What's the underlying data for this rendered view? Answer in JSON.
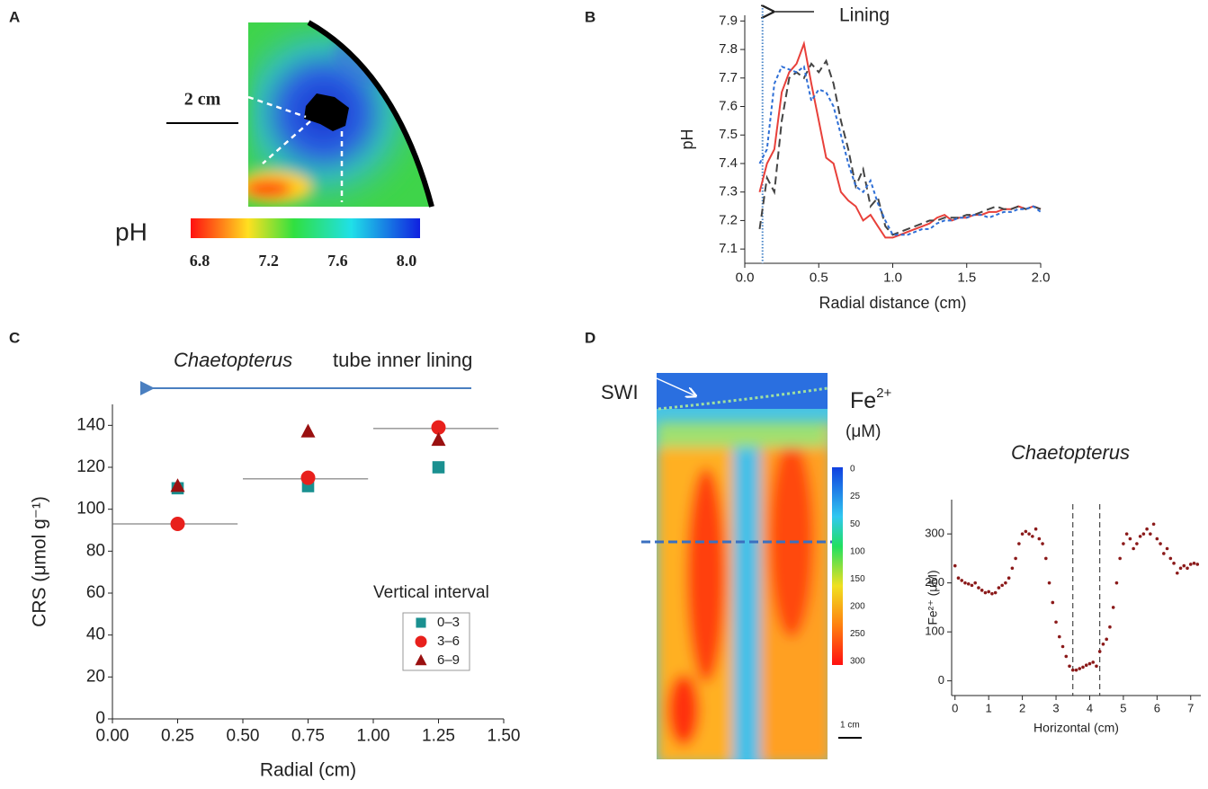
{
  "chart_data": [
    {
      "type": "image",
      "panel": "A",
      "scale_label": "2 cm",
      "colorbar_label": "pH",
      "colorbar_ticks": [
        6.8,
        7.2,
        7.6,
        {
          "value": 8,
          "label": "8.0"
        }
      ]
    },
    {
      "type": "line",
      "panel": "B",
      "annotation": "Lining",
      "vline": 0.12,
      "xlabel": "Radial distance (cm)",
      "ylabel": "pH",
      "x": [
        0.1,
        0.15,
        0.2,
        0.25,
        0.3,
        0.35,
        0.4,
        0.45,
        0.5,
        0.55,
        0.6,
        0.65,
        0.7,
        0.75,
        0.8,
        0.85,
        0.9,
        0.95,
        1.0,
        1.05,
        1.1,
        1.15,
        1.2,
        1.25,
        1.3,
        1.35,
        1.4,
        1.45,
        1.5,
        1.55,
        1.6,
        1.65,
        1.7,
        1.75,
        1.8,
        1.85,
        1.9,
        1.95,
        2.0
      ],
      "series": [
        {
          "color": "#e8403a",
          "dash": "solid",
          "values": [
            7.3,
            7.4,
            7.45,
            7.65,
            7.72,
            7.75,
            7.82,
            7.68,
            7.55,
            7.42,
            7.4,
            7.3,
            7.27,
            7.25,
            7.2,
            7.22,
            7.18,
            7.14,
            7.14,
            7.15,
            7.16,
            7.17,
            7.18,
            7.19,
            7.21,
            7.22,
            7.2,
            7.21,
            7.21,
            7.22,
            7.22,
            7.23,
            7.23,
            7.24,
            7.24,
            7.25,
            7.24,
            7.25,
            7.24
          ]
        },
        {
          "color": "#444444",
          "dash": "dashed",
          "values": [
            7.17,
            7.35,
            7.3,
            7.55,
            7.7,
            7.72,
            7.7,
            7.75,
            7.72,
            7.76,
            7.68,
            7.55,
            7.45,
            7.32,
            7.38,
            7.25,
            7.28,
            7.18,
            7.15,
            7.16,
            7.17,
            7.18,
            7.19,
            7.2,
            7.2,
            7.21,
            7.21,
            7.21,
            7.22,
            7.22,
            7.23,
            7.24,
            7.25,
            7.24,
            7.24,
            7.25,
            7.24,
            7.25,
            7.24
          ]
        },
        {
          "color": "#2f6fd6",
          "dash": "dotted",
          "values": [
            7.4,
            7.45,
            7.68,
            7.74,
            7.73,
            7.72,
            7.74,
            7.62,
            7.66,
            7.65,
            7.6,
            7.5,
            7.4,
            7.32,
            7.3,
            7.34,
            7.26,
            7.2,
            7.15,
            7.15,
            7.15,
            7.16,
            7.17,
            7.17,
            7.19,
            7.2,
            7.2,
            7.21,
            7.21,
            7.22,
            7.22,
            7.21,
            7.22,
            7.23,
            7.23,
            7.24,
            7.24,
            7.25,
            7.23
          ]
        }
      ],
      "xlim": [
        0,
        2
      ],
      "ylim": [
        7.05,
        7.92
      ],
      "xticks": [
        {
          "value": 0,
          "label": "0.0"
        },
        0.5,
        {
          "value": 1,
          "label": "1.0"
        },
        1.5,
        {
          "value": 2,
          "label": "2.0"
        }
      ],
      "yticks": [
        7.1,
        7.2,
        7.3,
        7.4,
        7.5,
        7.6,
        7.7,
        7.8,
        7.9
      ]
    },
    {
      "type": "scatter",
      "panel": "C",
      "annotation_italic": "Chaetopterus",
      "annotation": "tube inner lining",
      "legend_title": "Vertical interval",
      "xlabel": "Radial (cm)",
      "ylabel": "CRS (μmol g⁻¹)",
      "series": [
        {
          "name": "0–3",
          "color": "#1a9090",
          "marker": "square",
          "x": [
            0.25,
            0.75,
            1.25
          ],
          "values": [
            110,
            111,
            120
          ]
        },
        {
          "name": "3–6",
          "color": "#e8201c",
          "marker": "circle",
          "x": [
            0.25,
            0.75,
            1.25
          ],
          "values": [
            93,
            115,
            139
          ]
        },
        {
          "name": "6–9",
          "color": "#9a1010",
          "marker": "triangle",
          "x": [
            0.25,
            0.75,
            1.25
          ],
          "values": [
            111,
            137,
            133
          ]
        }
      ],
      "hlines": [
        {
          "y": 93,
          "x": [
            0,
            0.48
          ]
        },
        {
          "y": 114.5,
          "x": [
            0.5,
            0.98
          ]
        },
        {
          "y": 138.5,
          "x": [
            1,
            1.48
          ]
        }
      ],
      "xlim": [
        0,
        1.5
      ],
      "ylim": [
        0,
        150
      ],
      "xticks": [
        {
          "value": 0,
          "label": "0.00"
        },
        {
          "value": 0.25,
          "label": "0.25"
        },
        {
          "value": 0.5,
          "label": "0.50"
        },
        {
          "value": 0.75,
          "label": "0.75"
        },
        {
          "value": 1,
          "label": "1.00"
        },
        {
          "value": 1.25,
          "label": "1.25"
        },
        {
          "value": 1.5,
          "label": "1.50"
        }
      ],
      "yticks": [
        0,
        20,
        40,
        60,
        80,
        100,
        120,
        140
      ]
    },
    {
      "type": "image",
      "panel": "D",
      "annotation": "SWI",
      "colorbar_label": "Fe",
      "colorbar_label_sup": "2+",
      "colorbar_unit": "(μM)",
      "scale_label": "1 cm",
      "colorbar_ticks": [
        0,
        25,
        50,
        100,
        150,
        200,
        250,
        300
      ]
    },
    {
      "type": "line",
      "title": "Chaetopterus",
      "xlabel": "Horizontal (cm)",
      "ylabel": "Fe²⁺ (μM)",
      "vlines": [
        3.5,
        4.3
      ],
      "x": [
        0,
        0.1,
        0.2,
        0.3,
        0.4,
        0.5,
        0.6,
        0.7,
        0.8,
        0.9,
        1,
        1.1,
        1.2,
        1.3,
        1.4,
        1.5,
        1.6,
        1.7,
        1.8,
        1.9,
        2,
        2.1,
        2.2,
        2.3,
        2.4,
        2.5,
        2.6,
        2.7,
        2.8,
        2.9,
        3,
        3.1,
        3.2,
        3.3,
        3.4,
        3.5,
        3.6,
        3.7,
        3.8,
        3.9,
        4,
        4.1,
        4.2,
        4.3,
        4.4,
        4.5,
        4.6,
        4.7,
        4.8,
        4.9,
        5,
        5.1,
        5.2,
        5.3,
        5.4,
        5.5,
        5.6,
        5.7,
        5.8,
        5.9,
        6,
        6.1,
        6.2,
        6.3,
        6.4,
        6.5,
        6.6,
        6.7,
        6.8,
        6.9,
        7,
        7.1,
        7.2
      ],
      "series": [
        {
          "color": "#8b1a1a",
          "marker": "dot",
          "values": [
            235,
            210,
            205,
            200,
            198,
            195,
            200,
            190,
            185,
            180,
            182,
            178,
            180,
            190,
            195,
            200,
            210,
            230,
            250,
            280,
            300,
            305,
            300,
            295,
            310,
            290,
            280,
            250,
            200,
            160,
            120,
            90,
            70,
            50,
            30,
            22,
            22,
            25,
            28,
            32,
            35,
            38,
            30,
            60,
            75,
            85,
            110,
            150,
            200,
            250,
            280,
            300,
            290,
            270,
            280,
            295,
            300,
            310,
            300,
            320,
            290,
            280,
            260,
            270,
            250,
            240,
            220,
            230,
            235,
            230,
            238,
            240,
            238
          ]
        }
      ],
      "xlim": [
        -0.1,
        7.3
      ],
      "ylim": [
        -30,
        370
      ],
      "xticks": [
        0,
        1,
        2,
        3,
        4,
        5,
        6,
        7
      ],
      "yticks": [
        0,
        100,
        200,
        300
      ]
    }
  ]
}
